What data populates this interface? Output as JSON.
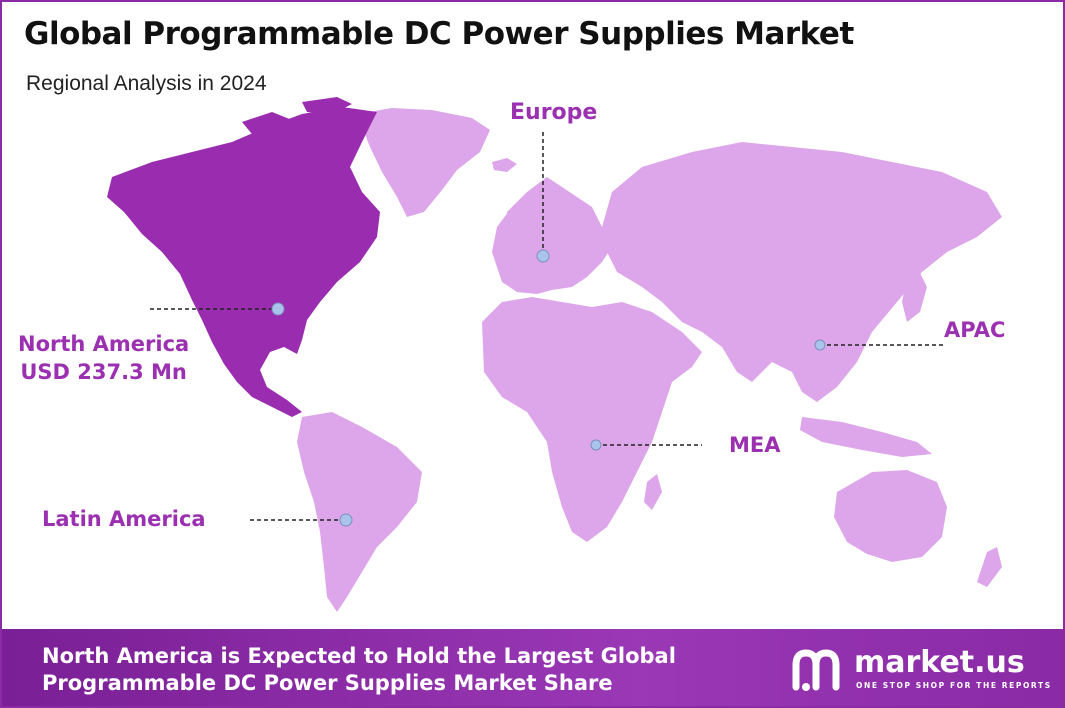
{
  "title": "Global Programmable DC Power Supplies Market",
  "subtitle": "Regional Analysis in 2024",
  "regions": {
    "north_america": {
      "name": "North America",
      "value": "USD 237.3 Mn",
      "highlighted": true
    },
    "europe": {
      "name": "Europe"
    },
    "apac": {
      "name": "APAC"
    },
    "mea": {
      "name": "MEA"
    },
    "latin_america": {
      "name": "Latin America"
    }
  },
  "footer": {
    "line1": "North America is Expected to Hold the Largest Global",
    "line2": "Programmable DC Power Supplies Market Share"
  },
  "brand": {
    "name": "market.us",
    "tagline": "ONE STOP SHOP FOR THE REPORTS"
  },
  "colors": {
    "highlight": "#9a2cb0",
    "land": "#dda6ea",
    "accent_text": "#9b30b0",
    "footer": "#8a2aa5",
    "marker": "#a9c3ea"
  }
}
